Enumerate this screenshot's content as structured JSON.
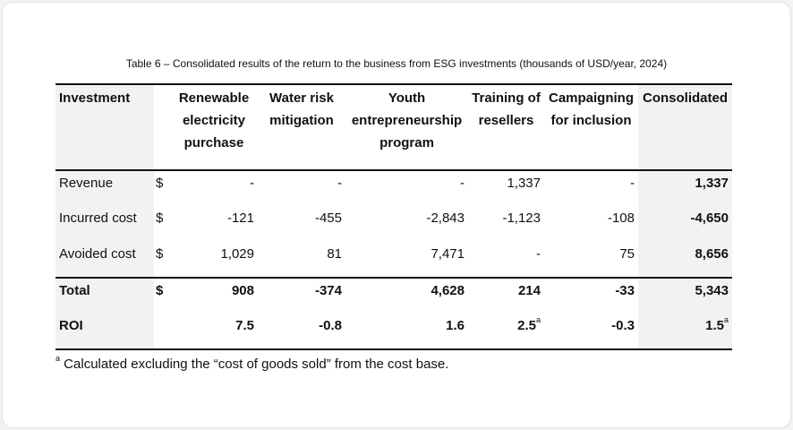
{
  "title": "Table 6 – Consolidated results of the return to the business from ESG investments (thousands of USD/year, 2024)",
  "headers": [
    "Investment",
    "",
    "Renewable electricity purchase",
    "Water risk mitigation",
    "Youth entrepreneurship program",
    "Training of resellers",
    "Campaigning for inclusion",
    "Consolidated"
  ],
  "currency": "$",
  "rows": [
    {
      "label": "Revenue",
      "cur": "$",
      "values": [
        "-",
        "-",
        "-",
        "1,337",
        "-",
        "1,337"
      ]
    },
    {
      "label": "Incurred cost",
      "cur": "$",
      "values": [
        "-121",
        "-455",
        "-2,843",
        "-1,123",
        "-108",
        "-4,650"
      ]
    },
    {
      "label": "Avoided cost",
      "cur": "$",
      "values": [
        "1,029",
        "81",
        "7,471",
        "-",
        "75",
        "8,656"
      ]
    },
    {
      "label": "Total",
      "cur": "$",
      "values": [
        "908",
        "-374",
        "4,628",
        "214",
        "-33",
        "5,343"
      ]
    },
    {
      "label": "ROI",
      "cur": "",
      "values": [
        "7.5",
        "-0.8",
        "1.6",
        "2.5",
        "-0.3",
        "1.5"
      ],
      "sup": [
        "",
        "",
        "",
        "a",
        "",
        "a"
      ]
    }
  ],
  "footnote": {
    "mark": "a",
    "text": " Calculated excluding the “cost of goods sold” from the cost base."
  }
}
